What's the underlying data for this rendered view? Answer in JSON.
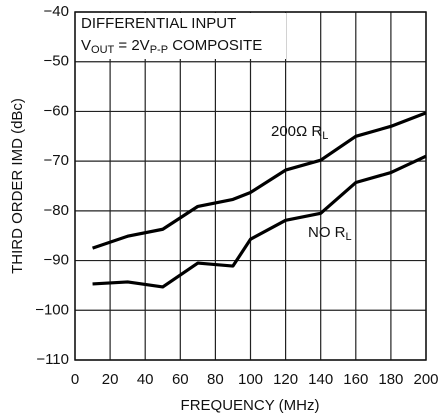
{
  "chart_data": {
    "type": "line",
    "xlabel": "FREQUENCY (MHz)",
    "ylabel": "THIRD ORDER IMD (dBc)",
    "annotation_line1": "DIFFERENTIAL INPUT",
    "annotation_line2": [
      "V",
      "OUT",
      " = 2V",
      "P-P",
      " COMPOSITE"
    ],
    "x": [
      10,
      30,
      50,
      70,
      90,
      100,
      120,
      140,
      160,
      180,
      200
    ],
    "series": [
      {
        "label_parts": [
          "200Ω R",
          "L"
        ],
        "color": "#000000",
        "values": [
          -87.5,
          -85.1,
          -83.7,
          -79.1,
          -77.7,
          -76.3,
          -71.8,
          -69.8,
          -65,
          -63,
          -60.3
        ]
      },
      {
        "label_parts": [
          "NO R",
          "L"
        ],
        "color": "#000000",
        "values": [
          -94.7,
          -94.3,
          -95.3,
          -90.5,
          -91.1,
          -85.7,
          -81.9,
          -80.5,
          -74.3,
          -72.3,
          -69
        ]
      }
    ],
    "xlim": [
      0,
      200
    ],
    "xticks": [
      0,
      20,
      40,
      60,
      80,
      100,
      120,
      140,
      160,
      180,
      200
    ],
    "ylim": [
      -110,
      -40
    ],
    "yticks": [
      {
        "value": -110,
        "label": "−110"
      },
      {
        "value": -100,
        "label": "−100"
      },
      {
        "value": -90,
        "label": "−90"
      },
      {
        "value": -80,
        "label": "−80"
      },
      {
        "value": -70,
        "label": "−70"
      },
      {
        "value": -60,
        "label": "−60"
      },
      {
        "value": -50,
        "label": "−50"
      },
      {
        "value": -40,
        "label": "−40"
      }
    ],
    "grid": true
  }
}
